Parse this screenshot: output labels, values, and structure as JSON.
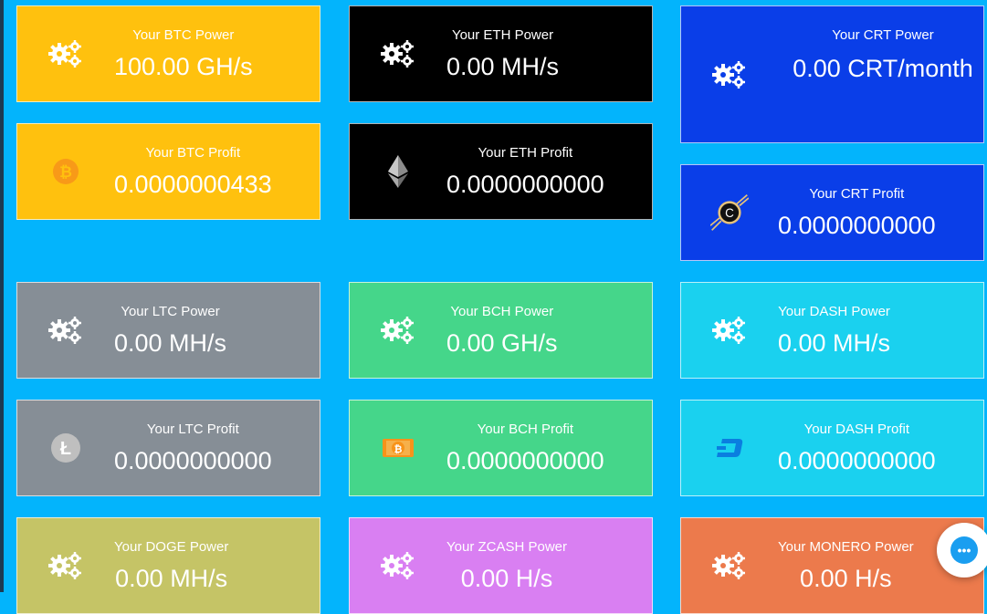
{
  "colors": {
    "background": "#03b4fc",
    "btc": "#ffc10e",
    "eth": "#000000",
    "crt": "#0a3ee8",
    "ltc": "#868e96",
    "bch": "#45d68a",
    "dash": "#1ad1ef",
    "doge": "#c5c466",
    "zcash": "#d97ff2",
    "monero": "#ec7a4c"
  },
  "cards": {
    "btc_power": {
      "label": "Your BTC Power",
      "value": "100.00 GH/s",
      "icon": "gears-icon"
    },
    "btc_profit": {
      "label": "Your BTC Profit",
      "value": "0.0000000433",
      "icon": "bitcoin-icon"
    },
    "eth_power": {
      "label": "Your ETH Power",
      "value": "0.00 MH/s",
      "icon": "gears-icon"
    },
    "eth_profit": {
      "label": "Your ETH Profit",
      "value": "0.0000000000",
      "icon": "ethereum-icon"
    },
    "crt_power": {
      "label": "Your CRT Power",
      "value": "0.00 CRT/month",
      "icon": "gears-icon"
    },
    "crt_profit": {
      "label": "Your CRT Profit",
      "value": "0.0000000000",
      "icon": "crt-coin-icon",
      "logo_text": "C"
    },
    "ltc_power": {
      "label": "Your LTC Power",
      "value": "0.00 MH/s",
      "icon": "gears-icon"
    },
    "ltc_profit": {
      "label": "Your LTC Profit",
      "value": "0.0000000000",
      "icon": "litecoin-icon",
      "logo_text": "Ł"
    },
    "bch_power": {
      "label": "Your BCH Power",
      "value": "0.00 GH/s",
      "icon": "gears-icon"
    },
    "bch_profit": {
      "label": "Your BCH Profit",
      "value": "0.0000000000",
      "icon": "bitcoin-cash-icon"
    },
    "dash_power": {
      "label": "Your DASH Power",
      "value": "0.00 MH/s",
      "icon": "gears-icon"
    },
    "dash_profit": {
      "label": "Your DASH Profit",
      "value": "0.0000000000",
      "icon": "dash-icon"
    },
    "doge_power": {
      "label": "Your DOGE Power",
      "value": "0.00 MH/s",
      "icon": "gears-icon"
    },
    "zcash_power": {
      "label": "Your ZCASH Power",
      "value": "0.00 H/s",
      "icon": "gears-icon"
    },
    "monero_power": {
      "label": "Your MONERO Power",
      "value": "0.00 H/s",
      "icon": "gears-icon"
    }
  },
  "chat": {
    "icon": "chat-bubble-icon",
    "glyph": "•••"
  }
}
